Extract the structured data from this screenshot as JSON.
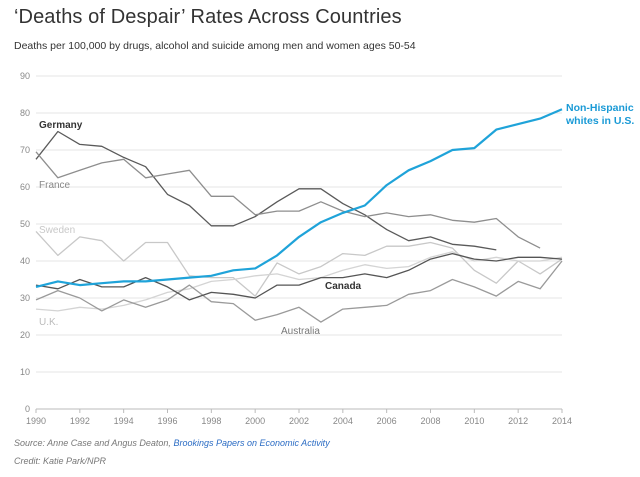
{
  "title": "‘Deaths of Despair’ Rates Across Countries",
  "subtitle": "Deaths per 100,000 by drugs, alcohol and suicide among men and women ages 50-54",
  "source_prefix": "Source: Anne Case and Angus Deaton, ",
  "source_link": "Brookings Papers on Economic Activity",
  "credit": "Credit: Katie Park/NPR",
  "chart_data": {
    "type": "line",
    "title": "‘Deaths of Despair’ Rates Across Countries",
    "subtitle": "Deaths per 100,000 by drugs, alcohol and suicide among men and women ages 50-54",
    "xlabel": "",
    "ylabel": "",
    "xlim": [
      1990,
      2014
    ],
    "ylim": [
      0,
      90
    ],
    "x_ticks": [
      1990,
      1992,
      1994,
      1996,
      1998,
      2000,
      2002,
      2004,
      2006,
      2008,
      2010,
      2012,
      2014
    ],
    "y_ticks": [
      0,
      10,
      20,
      30,
      40,
      50,
      60,
      70,
      80,
      90
    ],
    "grid": "horizontal",
    "legend": "direct labels",
    "series": [
      {
        "name": "Germany",
        "color": "#5a5a5a",
        "label_color": "#333333",
        "x": [
          1990,
          1991,
          1992,
          1993,
          1994,
          1995,
          1996,
          1997,
          1998,
          1999,
          2000,
          2001,
          2002,
          2003,
          2004,
          2005,
          2006,
          2007,
          2008,
          2009,
          2010,
          2011
        ],
        "values": [
          67.5,
          75,
          71.5,
          71,
          68,
          65.5,
          58,
          55,
          49.5,
          49.5,
          52,
          56,
          59.5,
          59.5,
          55.5,
          52.5,
          48.5,
          45.5,
          46.5,
          44.5,
          44,
          43
        ]
      },
      {
        "name": "France",
        "color": "#8e8e8e",
        "label_color": "#888888",
        "x": [
          1990,
          1991,
          1992,
          1993,
          1994,
          1995,
          1996,
          1997,
          1998,
          1999,
          2000,
          2001,
          2002,
          2003,
          2004,
          2005,
          2006,
          2007,
          2008,
          2009,
          2010,
          2011,
          2012,
          2013
        ],
        "values": [
          69.5,
          62.5,
          64.5,
          66.5,
          67.5,
          62.5,
          63.5,
          64.5,
          57.5,
          57.5,
          52.5,
          53.5,
          53.5,
          56,
          53.5,
          52,
          53,
          52,
          52.5,
          51,
          50.5,
          51.5,
          46.5,
          43.5
        ]
      },
      {
        "name": "Sweden",
        "color": "#c8c8c8",
        "label_color": "#c8c8c8",
        "x": [
          1990,
          1991,
          1992,
          1993,
          1994,
          1995,
          1996,
          1997,
          1998,
          1999,
          2000,
          2001,
          2002,
          2003,
          2004,
          2005,
          2006,
          2007,
          2008,
          2009,
          2010,
          2011,
          2012,
          2013,
          2014
        ],
        "values": [
          48,
          41.5,
          46.5,
          45.5,
          40,
          45,
          45,
          36,
          35.5,
          35.5,
          30.5,
          39.5,
          36.5,
          38.5,
          42,
          41.5,
          44,
          44,
          45,
          43.5,
          37.5,
          34,
          40,
          36.5,
          40.5
        ]
      },
      {
        "name": "U.K.",
        "color": "#d4d4d4",
        "label_color": "#bbbbbb",
        "x": [
          1990,
          1991,
          1992,
          1993,
          1994,
          1995,
          1996,
          1997,
          1998,
          1999,
          2000,
          2001,
          2002,
          2003,
          2004,
          2005,
          2006,
          2007,
          2008,
          2009,
          2010,
          2011,
          2012,
          2013,
          2014
        ],
        "values": [
          27,
          26.5,
          27.5,
          27,
          28,
          29.5,
          31.5,
          32.5,
          34.5,
          35,
          36,
          36.5,
          35,
          35.5,
          37.5,
          39,
          38,
          38.5,
          41,
          42.5,
          40,
          41,
          40,
          40,
          41
        ]
      },
      {
        "name": "Australia",
        "color": "#9a9a9a",
        "label_color": "#777777",
        "x": [
          1990,
          1991,
          1992,
          1993,
          1994,
          1995,
          1996,
          1997,
          1998,
          1999,
          2000,
          2001,
          2002,
          2003,
          2004,
          2005,
          2006,
          2007,
          2008,
          2009,
          2010,
          2011,
          2012,
          2013,
          2014
        ],
        "values": [
          29.5,
          32,
          30,
          26.5,
          29.5,
          27.5,
          29.5,
          33.5,
          29,
          28.5,
          24,
          25.5,
          27.5,
          23.5,
          27,
          27.5,
          28,
          31,
          32,
          35,
          33,
          30.5,
          34.5,
          32.5,
          40
        ]
      },
      {
        "name": "Canada",
        "color": "#555555",
        "label_color": "#333333",
        "x": [
          1990,
          1991,
          1992,
          1993,
          1994,
          1995,
          1996,
          1997,
          1998,
          1999,
          2000,
          2001,
          2002,
          2003,
          2004,
          2005,
          2006,
          2007,
          2008,
          2009,
          2010,
          2011,
          2012,
          2013,
          2014
        ],
        "values": [
          33.5,
          32.5,
          35,
          33,
          33,
          35.5,
          33,
          29.5,
          31.5,
          31,
          30,
          33.5,
          33.5,
          35.5,
          35.5,
          36.5,
          35.5,
          37.5,
          40.5,
          42,
          40.5,
          40,
          41,
          41,
          40.5
        ]
      },
      {
        "name": "Non-Hispanic whites in U.S.",
        "label_lines": [
          "Non-Hispanic",
          "whites in U.S."
        ],
        "color": "#1fa3d9",
        "label_color": "#1a9ad6",
        "x": [
          1990,
          1991,
          1992,
          1993,
          1994,
          1995,
          1996,
          1997,
          1998,
          1999,
          2000,
          2001,
          2002,
          2003,
          2004,
          2005,
          2006,
          2007,
          2008,
          2009,
          2010,
          2011,
          2012,
          2013,
          2014
        ],
        "values": [
          33,
          34.5,
          33.5,
          34,
          34.5,
          34.5,
          35,
          35.5,
          36,
          37.5,
          38,
          41.5,
          46.5,
          50.5,
          53,
          55,
          60.5,
          64.5,
          67,
          70,
          70.5,
          75.5,
          77,
          78.5,
          81
        ]
      }
    ]
  }
}
